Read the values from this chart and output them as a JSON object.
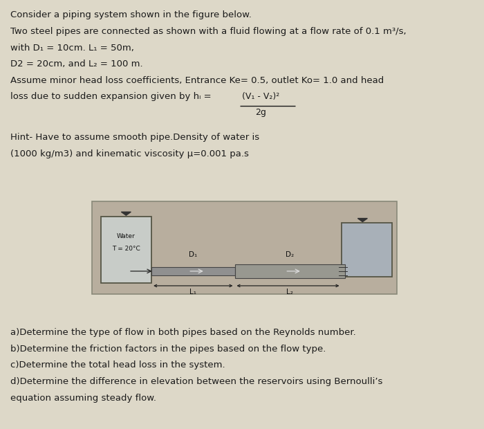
{
  "bg_color": "#ddd8c8",
  "text_color": "#1a1a1a",
  "line1": "Consider a piping system shown in the figure below.",
  "line2": "Two steel pipes are connected as shown with a fluid flowing at a flow rate of 0.1 m³/s,",
  "line3": "with D₁ = 10cm. L₁ = 50m,",
  "line4": "D2 = 20cm, and L₂ = 100 m.",
  "line5": "Assume minor head loss coefficients, Entrance Ke= 0.5, outlet Ko= 1.0 and head",
  "line6": "loss due to sudden expansion given by hₗ =",
  "formula_num": "(V₁ - V₂)²",
  "formula_den": "2g",
  "hint1": "Hint- Have to assume smooth pipe.Density of water is",
  "hint2": "(1000 kg/m3) and kinematic viscosity μ=0.001 pa.s",
  "q1": "a)Determine the type of flow in both pipes based on the Reynolds number.",
  "q2": "b)Determine the friction factors in the pipes based on the flow type.",
  "q3": "c)Determine the total head loss in the system.",
  "q4": "d)Determine the difference in elevation between the reservoirs using Bernoulli’s",
  "q5": "equation assuming steady flow.",
  "fs": 9.5,
  "lh": 0.038
}
